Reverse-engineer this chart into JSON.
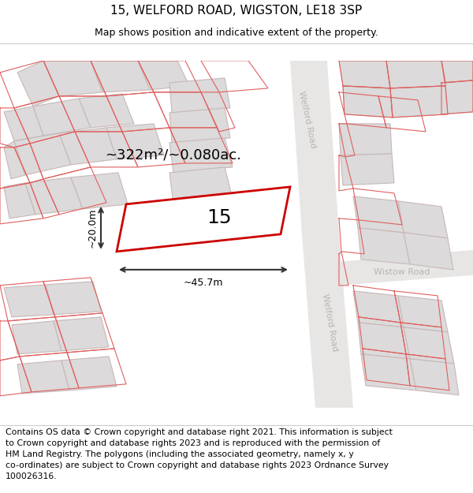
{
  "title": "15, WELFORD ROAD, WIGSTON, LE18 3SP",
  "subtitle": "Map shows position and indicative extent of the property.",
  "footer": "Contains OS data © Crown copyright and database right 2021. This information is subject\nto Crown copyright and database rights 2023 and is reproduced with the permission of\nHM Land Registry. The polygons (including the associated geometry, namely x, y\nco-ordinates) are subject to Crown copyright and database rights 2023 Ordnance Survey\n100026316.",
  "area_label": "~322m²/~0.080ac.",
  "width_label": "~45.7m",
  "height_label": "~20.0m",
  "property_number": "15",
  "map_bg": "#f0eeee",
  "road_fill": "#e8e5e5",
  "bld_fill": "#dcdada",
  "bld_edge": "#c8b8b8",
  "red_line": "#e06060",
  "prop_edge": "#cc0000",
  "road_lbl": "#b8b4b4",
  "dim_color": "#333333",
  "title_fs": 11,
  "subtitle_fs": 9,
  "area_fs": 13,
  "footer_fs": 7.8,
  "prop_num_fs": 18,
  "dim_fs": 9,
  "road_lbl_fs": 8
}
